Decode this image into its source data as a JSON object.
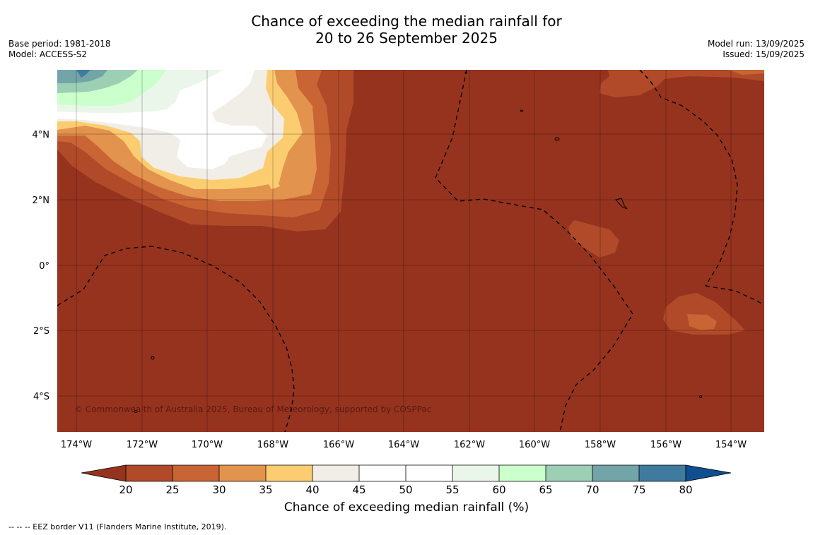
{
  "title": {
    "line1": "Chance of exceeding the median rainfall for",
    "line2": "20 to 26 September 2025"
  },
  "meta": {
    "base_period": "Base period: 1981-2018",
    "model": "Model: ACCESS-S2",
    "model_run": "Model run: 13/09/2025",
    "issued": "Issued: 15/09/2025"
  },
  "map": {
    "background_color": "#96331f",
    "lon_range": [
      -174.6,
      -153.0
    ],
    "lat_range": [
      -5.0,
      6.0
    ],
    "lon_ticks": [
      "174°W",
      "172°W",
      "170°W",
      "168°W",
      "166°W",
      "164°W",
      "162°W",
      "160°W",
      "158°W",
      "156°W",
      "154°W"
    ],
    "lat_ticks": [
      "4°N",
      "2°N",
      "0°",
      "2°S",
      "4°S"
    ],
    "copyright": "© Commonwealth of Australia 2025, Bureau of Meteorology, supported by COSPPac"
  },
  "colorbar": {
    "ticks": [
      "20",
      "25",
      "30",
      "35",
      "40",
      "45",
      "50",
      "55",
      "60",
      "65",
      "70",
      "75",
      "80"
    ],
    "colors": [
      "#96331f",
      "#b04a28",
      "#c96435",
      "#e2934d",
      "#fccd70",
      "#f1ede7",
      "#ffffff",
      "#ffffff",
      "#ebf6ea",
      "#cbffcb",
      "#9dcfb5",
      "#72a4a8",
      "#3e7b9f",
      "#0f4f8f"
    ],
    "label": "Chance of exceeding median rainfall (%)"
  },
  "footer": "--  --  -- EEZ border V11 (Flanders Marine Institute, 2019)."
}
